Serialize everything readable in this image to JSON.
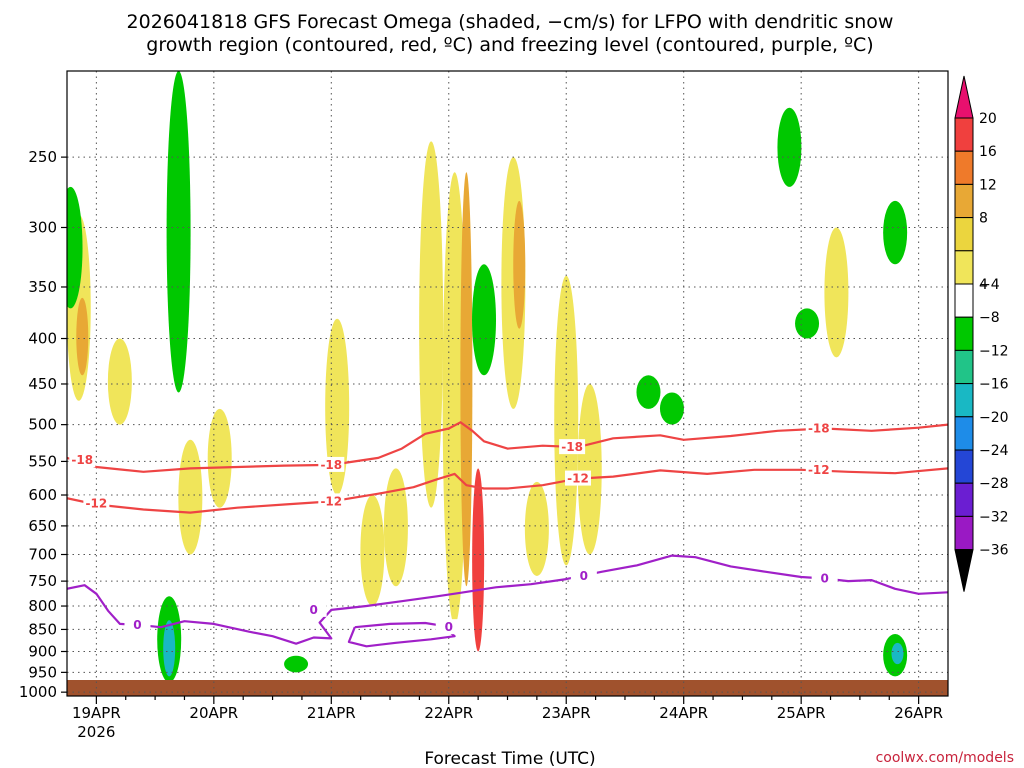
{
  "chart_data": {
    "type": "heatmap",
    "title_line1": "2026041818 GFS Forecast Omega (shaded, −cm/s) for LFPO with dendritic snow",
    "title_line2": "growth region (contoured, red, ºC) and freezing level (contoured, purple, ºC)",
    "xlabel": "Forecast Time (UTC)",
    "credit": "coolwx.com/models",
    "x_ticks": [
      {
        "t": 0.0,
        "label": "19APR",
        "sub": "2026"
      },
      {
        "t": 1.0,
        "label": "20APR",
        "sub": ""
      },
      {
        "t": 2.0,
        "label": "21APR",
        "sub": ""
      },
      {
        "t": 3.0,
        "label": "22APR",
        "sub": ""
      },
      {
        "t": 4.0,
        "label": "23APR",
        "sub": ""
      },
      {
        "t": 5.0,
        "label": "24APR",
        "sub": ""
      },
      {
        "t": 6.0,
        "label": "25APR",
        "sub": ""
      },
      {
        "t": 7.0,
        "label": "26APR",
        "sub": ""
      }
    ],
    "xlim": [
      -0.25,
      7.25
    ],
    "y_ticks": [
      250,
      300,
      350,
      400,
      450,
      500,
      550,
      600,
      650,
      700,
      750,
      800,
      850,
      900,
      950,
      1000
    ],
    "ylim": [
      200,
      1010
    ],
    "colorbar": {
      "levels": [
        "20",
        "16",
        "12",
        "8",
        "4",
        "−4",
        "−8",
        "−12",
        "−16",
        "−20",
        "−24",
        "−28",
        "−32",
        "−36"
      ],
      "colors": [
        "#e8106e",
        "#f0403e",
        "#ef7a2a",
        "#e8a835",
        "#ebd53e",
        "#f0e55a",
        "#ffffff",
        "#00c800",
        "#21c488",
        "#19b8c4",
        "#1e8ce8",
        "#2446d6",
        "#6b1ed2",
        "#9a19c4",
        "#a5a5a5",
        "#000000"
      ]
    },
    "contours": [
      {
        "name": "-18",
        "color": "#ee4444",
        "label": "-18",
        "points": [
          [
            -0.25,
            545
          ],
          [
            0.0,
            558
          ],
          [
            0.4,
            565
          ],
          [
            0.8,
            560
          ],
          [
            1.2,
            558
          ],
          [
            1.6,
            556
          ],
          [
            2.0,
            555
          ],
          [
            2.4,
            545
          ],
          [
            2.6,
            532
          ],
          [
            2.8,
            512
          ],
          [
            3.0,
            505
          ],
          [
            3.1,
            497
          ],
          [
            3.2,
            508
          ],
          [
            3.3,
            522
          ],
          [
            3.5,
            532
          ],
          [
            3.8,
            528
          ],
          [
            4.1,
            530
          ],
          [
            4.4,
            518
          ],
          [
            4.8,
            514
          ],
          [
            5.0,
            520
          ],
          [
            5.4,
            515
          ],
          [
            5.8,
            508
          ],
          [
            6.2,
            505
          ],
          [
            6.6,
            508
          ],
          [
            7.0,
            504
          ],
          [
            7.25,
            500
          ]
        ],
        "label_at": [
          [
            -0.12,
            548
          ],
          [
            2.0,
            555
          ],
          [
            4.05,
            530
          ],
          [
            6.15,
            505
          ]
        ]
      },
      {
        "name": "-12",
        "color": "#ee4444",
        "label": "-12",
        "points": [
          [
            -0.25,
            605
          ],
          [
            0.0,
            615
          ],
          [
            0.4,
            623
          ],
          [
            0.8,
            628
          ],
          [
            1.2,
            620
          ],
          [
            1.6,
            615
          ],
          [
            2.0,
            610
          ],
          [
            2.4,
            598
          ],
          [
            2.7,
            588
          ],
          [
            2.9,
            576
          ],
          [
            3.05,
            568
          ],
          [
            3.15,
            585
          ],
          [
            3.3,
            590
          ],
          [
            3.5,
            590
          ],
          [
            3.8,
            585
          ],
          [
            4.1,
            575
          ],
          [
            4.4,
            572
          ],
          [
            4.8,
            563
          ],
          [
            5.2,
            568
          ],
          [
            5.6,
            562
          ],
          [
            6.0,
            562
          ],
          [
            6.4,
            565
          ],
          [
            6.8,
            567
          ],
          [
            7.25,
            560
          ]
        ],
        "label_at": [
          [
            0.0,
            613
          ],
          [
            2.0,
            610
          ],
          [
            4.1,
            575
          ],
          [
            6.15,
            562
          ]
        ]
      },
      {
        "name": "0",
        "color": "#a020c8",
        "label": "0",
        "points": [
          [
            -0.25,
            765
          ],
          [
            -0.1,
            758
          ],
          [
            0.0,
            775
          ],
          [
            0.1,
            810
          ],
          [
            0.2,
            838
          ],
          [
            0.35,
            840
          ],
          [
            0.55,
            845
          ],
          [
            0.75,
            832
          ],
          [
            1.0,
            838
          ],
          [
            1.3,
            855
          ],
          [
            1.5,
            865
          ],
          [
            1.7,
            882
          ],
          [
            1.85,
            868
          ],
          [
            2.0,
            870
          ],
          [
            1.9,
            835
          ],
          [
            2.0,
            808
          ],
          [
            2.3,
            800
          ],
          [
            2.6,
            790
          ],
          [
            2.9,
            780
          ],
          [
            3.1,
            773
          ],
          [
            3.4,
            762
          ],
          [
            3.7,
            756
          ],
          [
            4.0,
            746
          ],
          [
            4.3,
            732
          ],
          [
            4.6,
            720
          ],
          [
            4.9,
            702
          ],
          [
            5.1,
            705
          ],
          [
            5.4,
            722
          ],
          [
            5.7,
            732
          ],
          [
            6.0,
            742
          ],
          [
            6.2,
            745
          ],
          [
            6.4,
            750
          ],
          [
            6.6,
            748
          ],
          [
            6.8,
            765
          ],
          [
            7.0,
            775
          ],
          [
            7.25,
            772
          ]
        ],
        "label_at": [
          [
            0.35,
            840
          ],
          [
            1.85,
            808
          ],
          [
            4.15,
            740
          ],
          [
            6.2,
            745
          ]
        ]
      },
      {
        "name": "0",
        "color": "#a020c8",
        "label": "0",
        "points": [
          [
            2.2,
            845
          ],
          [
            2.5,
            838
          ],
          [
            2.8,
            836
          ],
          [
            2.95,
            842
          ],
          [
            3.05,
            865
          ],
          [
            2.85,
            872
          ],
          [
            2.55,
            880
          ],
          [
            2.3,
            888
          ],
          [
            2.15,
            878
          ],
          [
            2.2,
            845
          ]
        ],
        "label_at": [
          [
            3.0,
            845
          ]
        ]
      }
    ],
    "shaded_cells": [
      {
        "t": -0.15,
        "p_top": 290,
        "p_bot": 470,
        "value": 5
      },
      {
        "t": -0.12,
        "p_top": 360,
        "p_bot": 440,
        "value": 10
      },
      {
        "t": -0.22,
        "p_top": 270,
        "p_bot": 370,
        "value": -6
      },
      {
        "t": 0.2,
        "p_top": 400,
        "p_bot": 500,
        "value": 5
      },
      {
        "t": 0.7,
        "p_top": 200,
        "p_bot": 460,
        "value": -6
      },
      {
        "t": 0.62,
        "p_top": 780,
        "p_bot": 975,
        "value": -7
      },
      {
        "t": 0.62,
        "p_top": 830,
        "p_bot": 960,
        "value": -14
      },
      {
        "t": 1.05,
        "p_top": 480,
        "p_bot": 620,
        "value": 5
      },
      {
        "t": 0.8,
        "p_top": 520,
        "p_bot": 700,
        "value": 5
      },
      {
        "t": 1.7,
        "p_top": 910,
        "p_bot": 950,
        "value": -6
      },
      {
        "t": 2.05,
        "p_top": 380,
        "p_bot": 600,
        "value": 5
      },
      {
        "t": 2.35,
        "p_top": 600,
        "p_bot": 800,
        "value": 5
      },
      {
        "t": 2.55,
        "p_top": 560,
        "p_bot": 760,
        "value": 5
      },
      {
        "t": 2.85,
        "p_top": 240,
        "p_bot": 620,
        "value": 5
      },
      {
        "t": 3.05,
        "p_top": 260,
        "p_bot": 840,
        "value": 5
      },
      {
        "t": 3.15,
        "p_top": 260,
        "p_bot": 760,
        "value": 10
      },
      {
        "t": 3.25,
        "p_top": 560,
        "p_bot": 900,
        "value": 16
      },
      {
        "t": 3.3,
        "p_top": 330,
        "p_bot": 440,
        "value": -6
      },
      {
        "t": 3.55,
        "p_top": 250,
        "p_bot": 480,
        "value": 5
      },
      {
        "t": 3.6,
        "p_top": 280,
        "p_bot": 390,
        "value": 10
      },
      {
        "t": 3.75,
        "p_top": 580,
        "p_bot": 740,
        "value": 5
      },
      {
        "t": 4.0,
        "p_top": 340,
        "p_bot": 720,
        "value": 5
      },
      {
        "t": 4.2,
        "p_top": 450,
        "p_bot": 700,
        "value": 5
      },
      {
        "t": 4.7,
        "p_top": 440,
        "p_bot": 480,
        "value": -6
      },
      {
        "t": 4.9,
        "p_top": 460,
        "p_bot": 500,
        "value": -6
      },
      {
        "t": 5.9,
        "p_top": 220,
        "p_bot": 270,
        "value": -6
      },
      {
        "t": 6.05,
        "p_top": 370,
        "p_bot": 400,
        "value": -6
      },
      {
        "t": 6.3,
        "p_top": 300,
        "p_bot": 420,
        "value": 5
      },
      {
        "t": 6.8,
        "p_top": 280,
        "p_bot": 330,
        "value": -6
      },
      {
        "t": 6.8,
        "p_top": 860,
        "p_bot": 960,
        "value": -6
      },
      {
        "t": 6.82,
        "p_top": 880,
        "p_bot": 930,
        "value": -14
      }
    ]
  }
}
